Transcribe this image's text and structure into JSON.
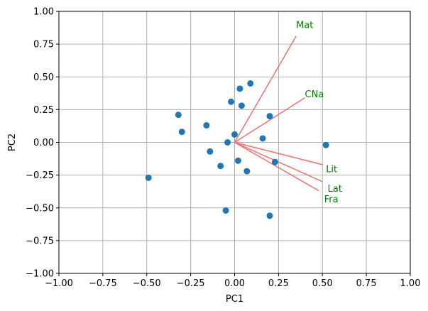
{
  "chart_data": {
    "type": "scatter",
    "title": "",
    "xlabel": "PC1",
    "ylabel": "PC2",
    "xlim": [
      -1.0,
      1.0
    ],
    "ylim": [
      -1.0,
      1.0
    ],
    "grid": true,
    "xticks": [
      -1.0,
      -0.75,
      -0.5,
      -0.25,
      0.0,
      0.25,
      0.5,
      0.75,
      1.0
    ],
    "xtick_labels": [
      "−1.00",
      "−0.75",
      "−0.50",
      "−0.25",
      "0.00",
      "0.25",
      "0.50",
      "0.75",
      "1.00"
    ],
    "yticks": [
      -1.0,
      -0.75,
      -0.5,
      -0.25,
      0.0,
      0.25,
      0.5,
      0.75,
      1.0
    ],
    "ytick_labels": [
      "−1.00",
      "−0.75",
      "−0.50",
      "−0.25",
      "0.00",
      "0.25",
      "0.50",
      "0.75",
      "1.00"
    ],
    "point_color": "#1f77b4",
    "vector_color": "#f07070",
    "label_color": "#008000",
    "points": [
      {
        "x": 0.09,
        "y": 0.45
      },
      {
        "x": 0.03,
        "y": 0.41
      },
      {
        "x": -0.02,
        "y": 0.31
      },
      {
        "x": 0.04,
        "y": 0.28
      },
      {
        "x": -0.32,
        "y": 0.21
      },
      {
        "x": 0.2,
        "y": 0.2
      },
      {
        "x": -0.16,
        "y": 0.13
      },
      {
        "x": -0.3,
        "y": 0.08
      },
      {
        "x": 0.0,
        "y": 0.06
      },
      {
        "x": 0.16,
        "y": 0.03
      },
      {
        "x": -0.04,
        "y": 0.0
      },
      {
        "x": 0.52,
        "y": -0.02
      },
      {
        "x": -0.14,
        "y": -0.07
      },
      {
        "x": 0.02,
        "y": -0.14
      },
      {
        "x": 0.23,
        "y": -0.15
      },
      {
        "x": -0.08,
        "y": -0.18
      },
      {
        "x": 0.07,
        "y": -0.22
      },
      {
        "x": -0.49,
        "y": -0.27
      },
      {
        "x": -0.05,
        "y": -0.52
      },
      {
        "x": 0.2,
        "y": -0.56
      }
    ],
    "vectors": [
      {
        "label": "Mat",
        "x": 0.35,
        "y": 0.81,
        "label_x": 0.35,
        "label_y": 0.9
      },
      {
        "label": "CNa",
        "x": 0.4,
        "y": 0.34,
        "label_x": 0.4,
        "label_y": 0.37
      },
      {
        "label": "Lit",
        "x": 0.5,
        "y": -0.17,
        "label_x": 0.52,
        "label_y": -0.2
      },
      {
        "label": "Lat",
        "x": 0.5,
        "y": -0.3,
        "label_x": 0.53,
        "label_y": -0.35
      },
      {
        "label": "Fra",
        "x": 0.48,
        "y": -0.37,
        "label_x": 0.51,
        "label_y": -0.43
      }
    ]
  }
}
